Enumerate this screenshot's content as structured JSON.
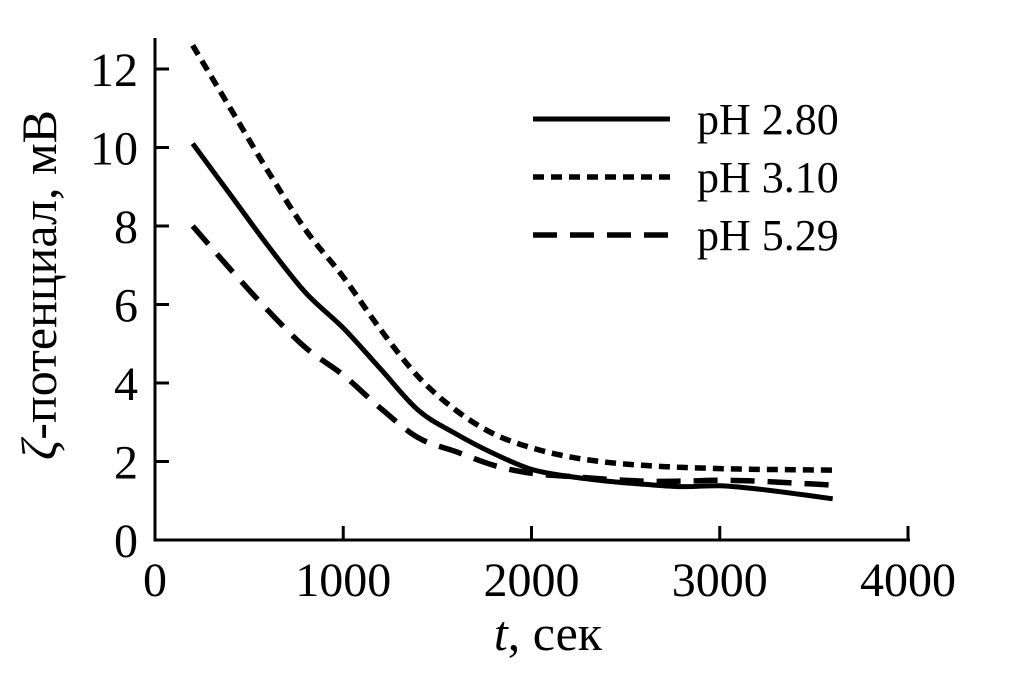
{
  "figure": {
    "background_color": "#ffffff",
    "ink_color": "#000000"
  },
  "chart_data": {
    "type": "line",
    "title": "",
    "xlabel": {
      "italic_part": "t",
      "rest_part": ", сек"
    },
    "ylabel": {
      "italic_part": "ζ",
      "rest_part": "-потенциал, мВ"
    },
    "xlim": [
      0,
      4000
    ],
    "ylim": [
      0,
      12.8
    ],
    "xticks": [
      0,
      1000,
      2000,
      3000,
      4000
    ],
    "yticks": [
      0,
      2,
      4,
      6,
      8,
      10,
      12
    ],
    "grid": false,
    "legend_position": "upper-right",
    "x": [
      200,
      400,
      600,
      800,
      1000,
      1200,
      1400,
      1600,
      1800,
      2000,
      2200,
      2400,
      2600,
      2800,
      3000,
      3200,
      3400,
      3600
    ],
    "series": [
      {
        "name": "pH 2.80",
        "style": "solid",
        "values": [
          10.1,
          8.8,
          7.5,
          6.3,
          5.4,
          4.35,
          3.3,
          2.7,
          2.2,
          1.8,
          1.62,
          1.5,
          1.42,
          1.36,
          1.38,
          1.3,
          1.18,
          1.05
        ]
      },
      {
        "name": "pH 3.10",
        "style": "dotted",
        "values": [
          12.6,
          11.0,
          9.4,
          7.9,
          6.7,
          5.35,
          4.15,
          3.3,
          2.7,
          2.35,
          2.12,
          1.98,
          1.9,
          1.85,
          1.82,
          1.8,
          1.79,
          1.78
        ]
      },
      {
        "name": "pH 5.29",
        "style": "dashed",
        "values": [
          8.0,
          6.9,
          5.85,
          4.9,
          4.2,
          3.35,
          2.6,
          2.25,
          1.9,
          1.7,
          1.62,
          1.55,
          1.5,
          1.5,
          1.52,
          1.5,
          1.45,
          1.4
        ]
      }
    ]
  }
}
